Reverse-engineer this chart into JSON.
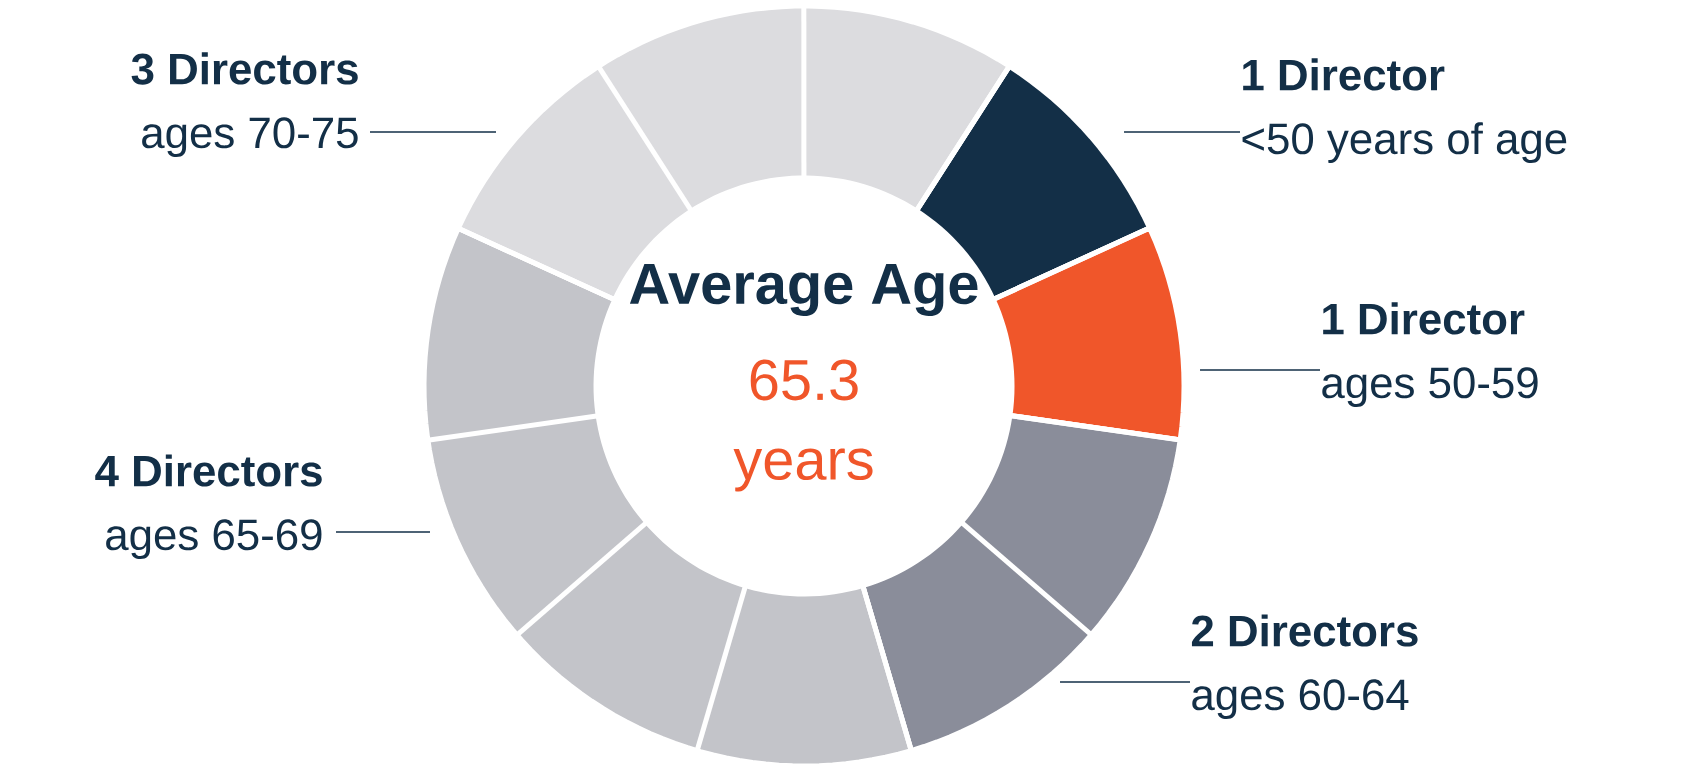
{
  "chart_data": {
    "type": "donut",
    "title": "Average Age",
    "annotations": [
      "65.3",
      "years"
    ],
    "categories": [
      "<50 years of age",
      "ages 50-59",
      "ages 60-64",
      "ages 65-69",
      "ages 70-75"
    ],
    "values": [
      1,
      1,
      2,
      4,
      3
    ],
    "value_labels": [
      "1 Director",
      "1 Director",
      "2 Directors",
      "4 Directors",
      "3 Directors"
    ],
    "colors": [
      "#132f47",
      "#f0562a",
      "#8a8d9a",
      "#c3c4c9",
      "#dcdcdf"
    ]
  }
}
